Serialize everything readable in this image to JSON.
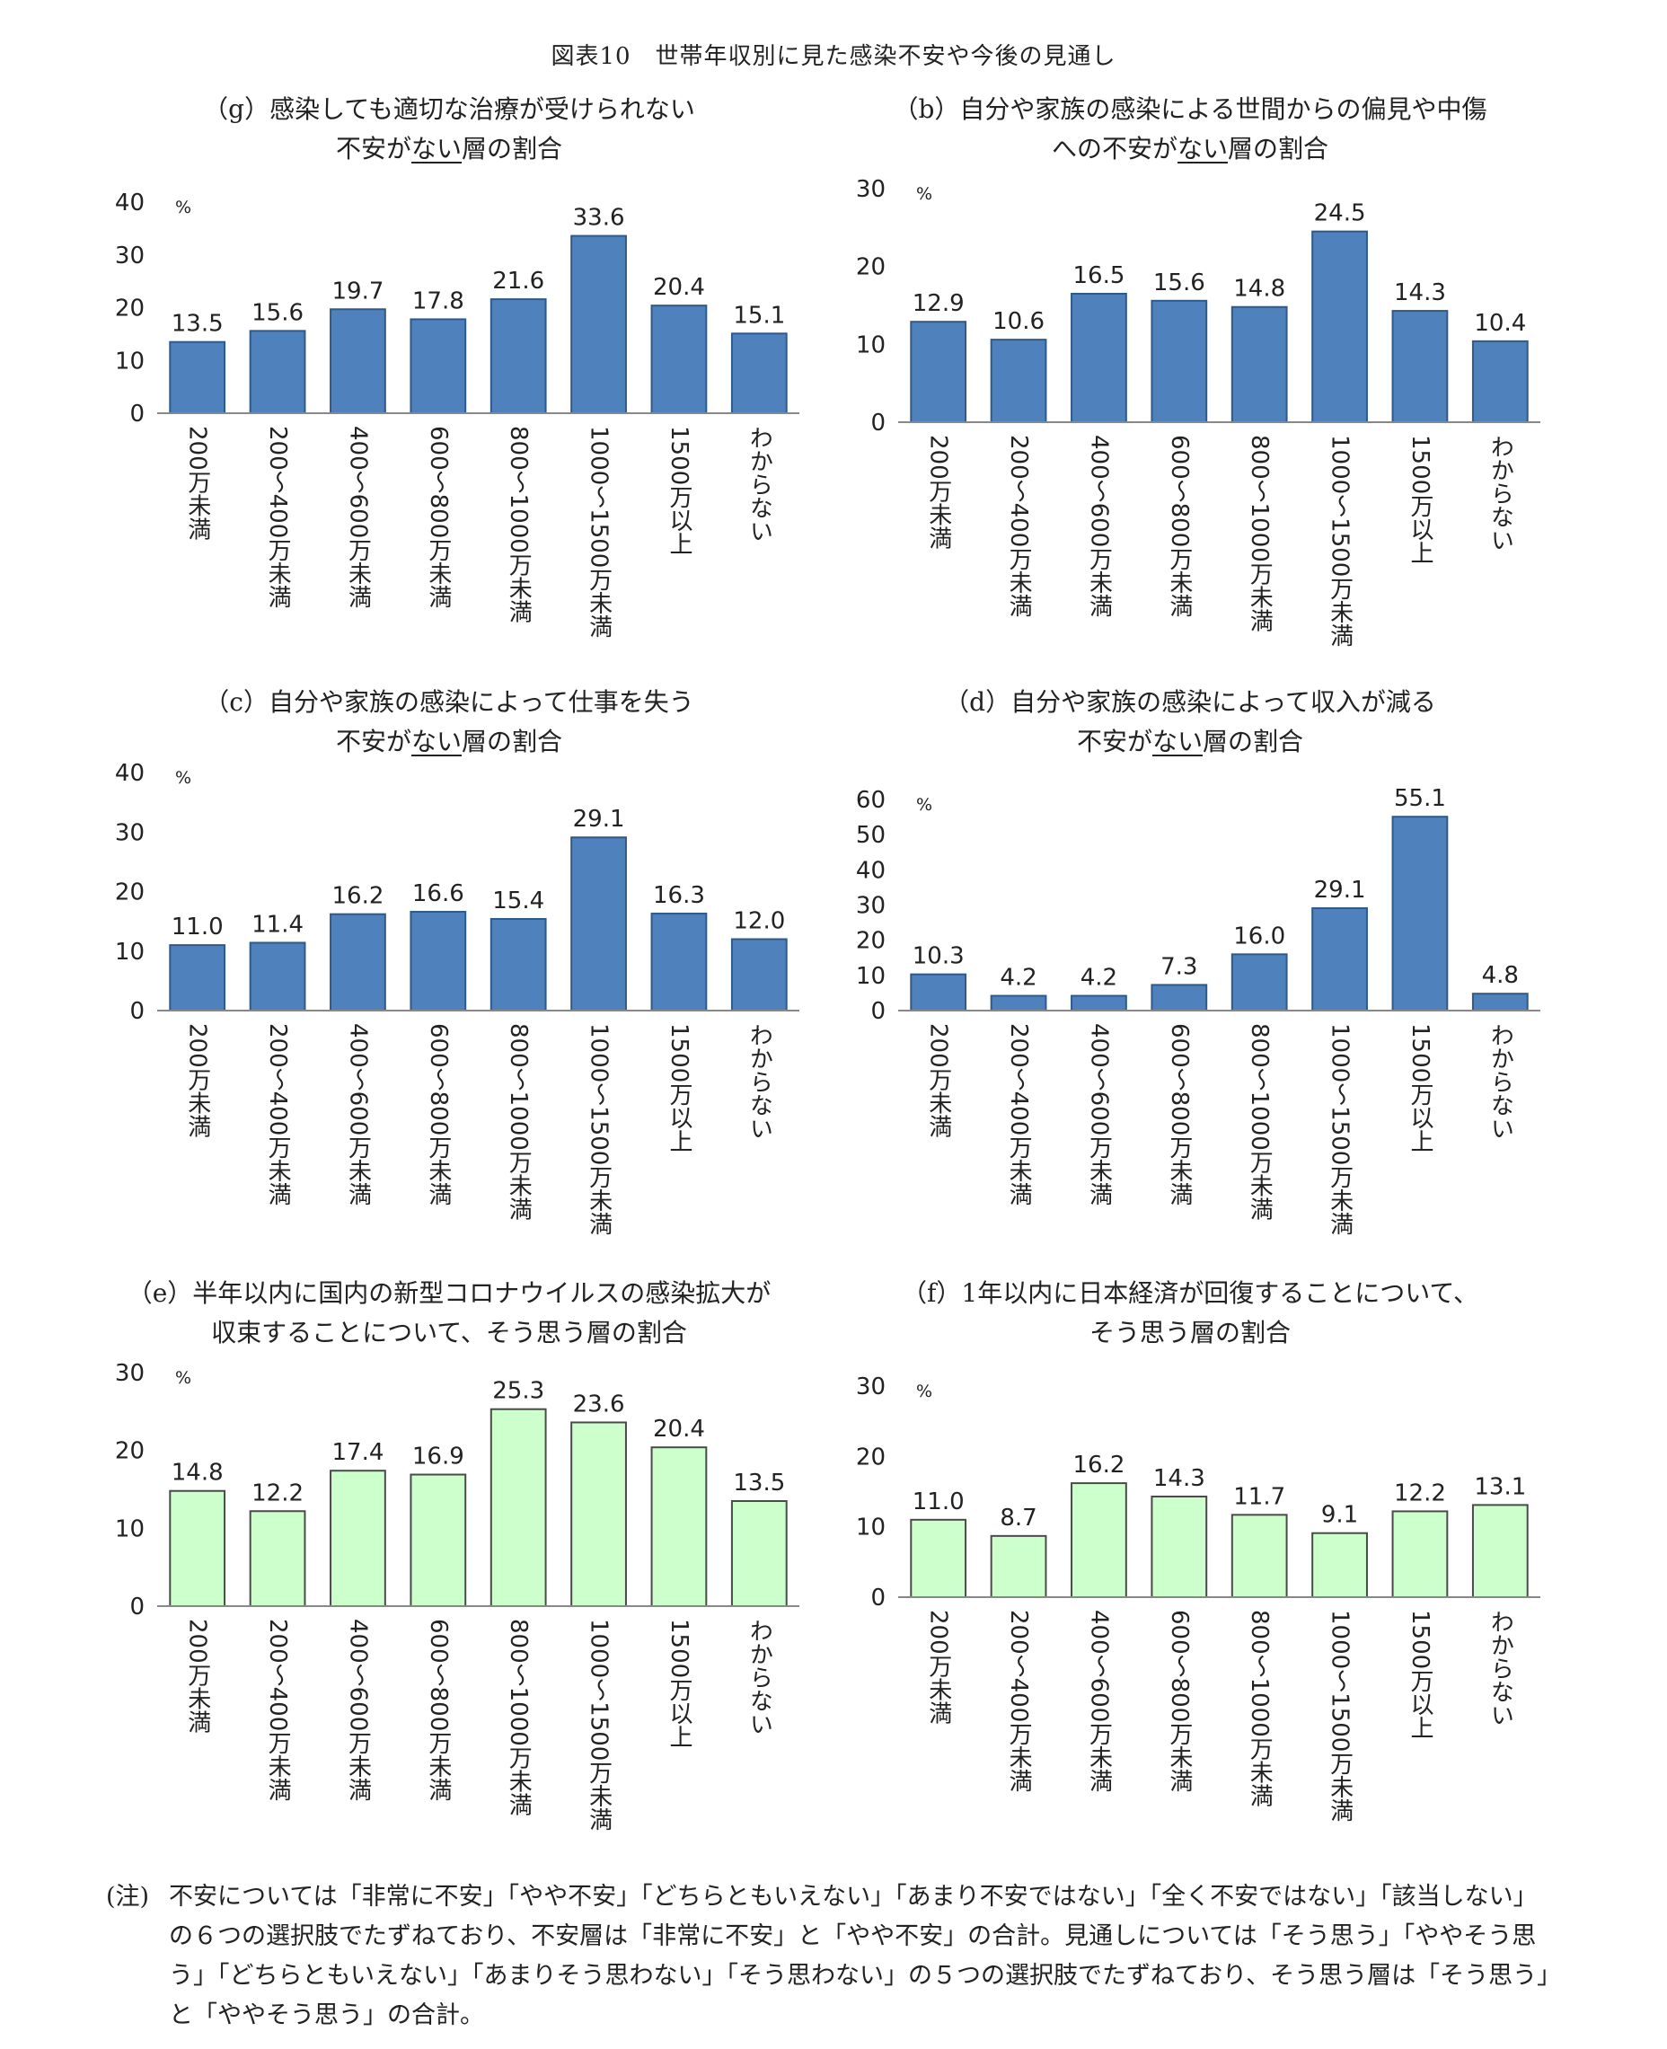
{
  "figure_title": "図表10　世帯年収別に見た感染不安や今後の見通し",
  "note": {
    "mark": "(注)",
    "text": "不安については「非常に不安」「やや不安」「どちらともいえない」「あまり不安ではない」「全く不安ではない」「該当しない」の６つの選択肢でたずねており、不安層は「非常に不安」と「やや不安」の合計。見通しについては「そう思う」「ややそう思う」「どちらともいえない」「あまりそう思わない」「そう思わない」の５つの選択肢でたずねており、そう思う層は「そう思う」と「ややそう思う」の合計。"
  },
  "colors": {
    "blue_fill": "#4f81bd",
    "blue_stroke": "#2e5a8a",
    "green_fill": "#ccffcc",
    "green_stroke": "#4a4a4a",
    "axis": "#888888"
  },
  "chart_data": [
    {
      "id": "g",
      "type": "bar",
      "title_lines": [
        "（g）感染しても適切な治療が受けられない",
        "不安が",
        "ない",
        "層の割合"
      ],
      "unit": "%",
      "categories": [
        "200万未満",
        "200～400万未満",
        "400～600万未満",
        "600～800万未満",
        "800～1000万未満",
        "1000～1500万未満",
        "1500万以上",
        "わからない"
      ],
      "values": [
        13.5,
        15.6,
        19.7,
        17.8,
        21.6,
        33.6,
        20.4,
        15.1
      ],
      "value_labels": [
        "13.5",
        "15.6",
        "19.7",
        "17.8",
        "21.6",
        "33.6",
        "20.4",
        "15.1"
      ],
      "ylim": [
        0,
        40
      ],
      "yticks": [
        0,
        10,
        20,
        30,
        40
      ],
      "color": "blue",
      "grid": false
    },
    {
      "id": "b",
      "type": "bar",
      "title_lines": [
        "（b）自分や家族の感染による世間からの偏見や中傷",
        "への不安が",
        "ない",
        "層の割合"
      ],
      "unit": "%",
      "categories": [
        "200万未満",
        "200～400万未満",
        "400～600万未満",
        "600～800万未満",
        "800～1000万未満",
        "1000～1500万未満",
        "1500万以上",
        "わからない"
      ],
      "values": [
        12.9,
        10.6,
        16.5,
        15.6,
        14.8,
        24.5,
        14.3,
        10.4
      ],
      "value_labels": [
        "12.9",
        "10.6",
        "16.5",
        "15.6",
        "14.8",
        "24.5",
        "14.3",
        "10.4"
      ],
      "ylim": [
        0,
        30
      ],
      "yticks": [
        0,
        10,
        20,
        30
      ],
      "color": "blue",
      "grid": false
    },
    {
      "id": "c",
      "type": "bar",
      "title_lines": [
        "（c）自分や家族の感染によって仕事を失う",
        "不安が",
        "ない",
        "層の割合"
      ],
      "unit": "%",
      "categories": [
        "200万未満",
        "200～400万未満",
        "400～600万未満",
        "600～800万未満",
        "800～1000万未満",
        "1000～1500万未満",
        "1500万以上",
        "わからない"
      ],
      "values": [
        11.0,
        11.4,
        16.2,
        16.6,
        15.4,
        29.1,
        16.3,
        12.0
      ],
      "value_labels": [
        "11.0",
        "11.4",
        "16.2",
        "16.6",
        "15.4",
        "29.1",
        "16.3",
        "12.0"
      ],
      "ylim": [
        0,
        40
      ],
      "yticks": [
        0,
        10,
        20,
        30,
        40
      ],
      "color": "blue",
      "grid": false
    },
    {
      "id": "d",
      "type": "bar",
      "title_lines": [
        "（d）自分や家族の感染によって収入が減る",
        "不安が",
        "ない",
        "層の割合"
      ],
      "unit": "%",
      "categories": [
        "200万未満",
        "200～400万未満",
        "400～600万未満",
        "600～800万未満",
        "800～1000万未満",
        "1000～1500万未満",
        "1500万以上",
        "わからない"
      ],
      "values": [
        10.3,
        4.2,
        4.2,
        7.3,
        16.0,
        29.1,
        55.1,
        4.8
      ],
      "value_labels": [
        "10.3",
        "4.2",
        "4.2",
        "7.3",
        "16.0",
        "29.1",
        "55.1",
        "4.8"
      ],
      "ylim": [
        0,
        60
      ],
      "yticks": [
        0,
        10,
        20,
        30,
        40,
        50,
        60
      ],
      "color": "blue",
      "grid": false
    },
    {
      "id": "e",
      "type": "bar",
      "title_lines": [
        "（e）半年以内に国内の新型コロナウイルスの感染拡大が",
        "収束することについて、そう思う層の割合",
        "",
        ""
      ],
      "unit": "%",
      "categories": [
        "200万未満",
        "200～400万未満",
        "400～600万未満",
        "600～800万未満",
        "800～1000万未満",
        "1000～1500万未満",
        "1500万以上",
        "わからない"
      ],
      "values": [
        14.8,
        12.2,
        17.4,
        16.9,
        25.3,
        23.6,
        20.4,
        13.5
      ],
      "value_labels": [
        "14.8",
        "12.2",
        "17.4",
        "16.9",
        "25.3",
        "23.6",
        "20.4",
        "13.5"
      ],
      "ylim": [
        0,
        30
      ],
      "yticks": [
        0,
        10,
        20,
        30
      ],
      "color": "green",
      "grid": false
    },
    {
      "id": "f",
      "type": "bar",
      "title_lines": [
        "（f）1年以内に日本経済が回復することについて、",
        "そう思う層の割合",
        "",
        ""
      ],
      "unit": "%",
      "categories": [
        "200万未満",
        "200～400万未満",
        "400～600万未満",
        "600～800万未満",
        "800～1000万未満",
        "1000～1500万未満",
        "1500万以上",
        "わからない"
      ],
      "values": [
        11.0,
        8.7,
        16.2,
        14.3,
        11.7,
        9.1,
        12.2,
        13.1
      ],
      "value_labels": [
        "11.0",
        "8.7",
        "16.2",
        "14.3",
        "11.7",
        "9.1",
        "12.2",
        "13.1"
      ],
      "ylim": [
        0,
        30
      ],
      "yticks": [
        0,
        10,
        20,
        30
      ],
      "color": "green",
      "grid": false
    }
  ]
}
